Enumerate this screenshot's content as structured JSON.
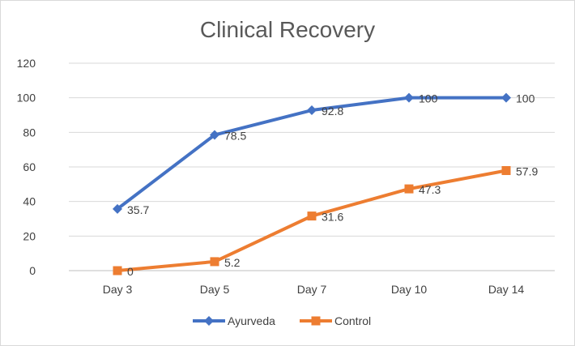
{
  "chart_data": {
    "type": "line",
    "title": "Clinical Recovery",
    "categories": [
      "Day 3",
      "Day 5",
      "Day 7",
      "Day 10",
      "Day 14"
    ],
    "ylim": [
      0,
      120
    ],
    "yticks": [
      0,
      20,
      40,
      60,
      80,
      100,
      120
    ],
    "grid": true,
    "legend": "bottom",
    "series": [
      {
        "name": "Ayurveda",
        "values": [
          35.7,
          78.5,
          92.8,
          100,
          100
        ],
        "labels": [
          "35.7",
          "78.5",
          "92.8",
          "100",
          "100"
        ],
        "color": "#4472c4",
        "marker": "diamond"
      },
      {
        "name": "Control",
        "values": [
          0,
          5.2,
          31.6,
          47.3,
          57.9
        ],
        "labels": [
          "0",
          "5.2",
          "31.6",
          "47.3",
          "57.9"
        ],
        "color": "#ed7d31",
        "marker": "square"
      }
    ]
  }
}
